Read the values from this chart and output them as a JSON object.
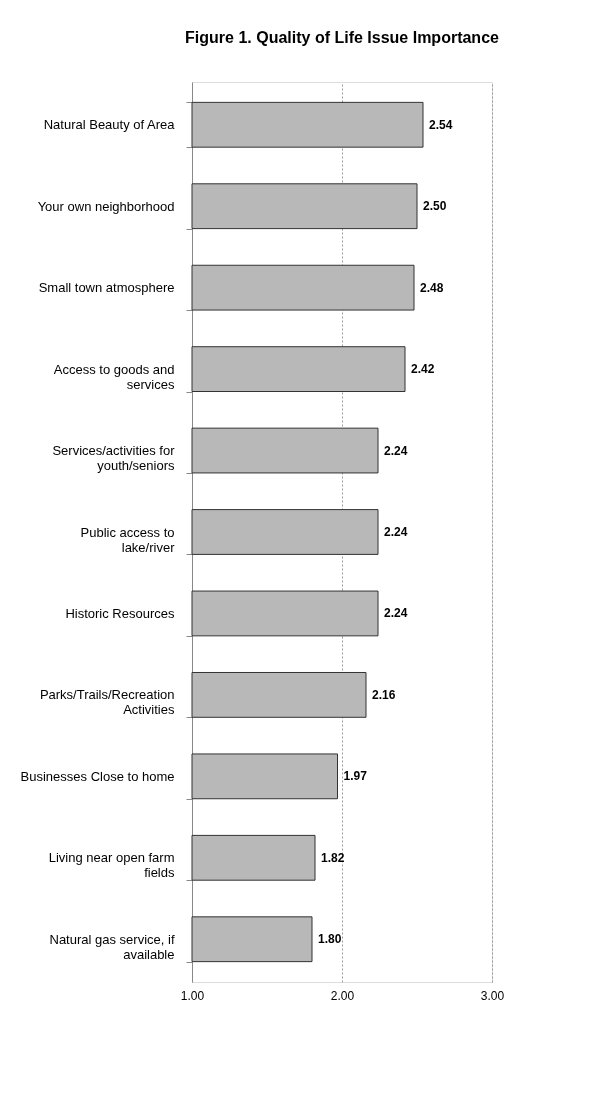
{
  "chart_data": {
    "type": "bar",
    "orientation": "horizontal",
    "title": "Figure 1. Quality of Life Issue Importance",
    "categories": [
      "Natural Beauty of Area",
      "Your own neighborhood",
      "Small town atmosphere",
      "Access to goods and services",
      "Services/activities for youth/seniors",
      "Public access to lake/river",
      "Historic Resources",
      "Parks/Trails/Recreation Activities",
      "Businesses Close to home",
      "Living near open farm fields",
      "Natural gas service, if available"
    ],
    "values": [
      2.54,
      2.5,
      2.48,
      2.42,
      2.24,
      2.24,
      2.24,
      2.16,
      1.97,
      1.82,
      1.8
    ],
    "color": "#b8b8b8",
    "xlim": [
      1,
      3
    ],
    "xticks": [
      {
        "value": 1,
        "label": "1.00"
      },
      {
        "value": 2,
        "label": "2.00"
      },
      {
        "value": 3,
        "label": "3.00"
      }
    ],
    "value_labels": [
      "2.54",
      "2.50",
      "2.48",
      "2.42",
      "2.24",
      "2.24",
      "2.24",
      "2.16",
      "1.97",
      "1.82",
      "1.80"
    ],
    "grid": "x"
  }
}
